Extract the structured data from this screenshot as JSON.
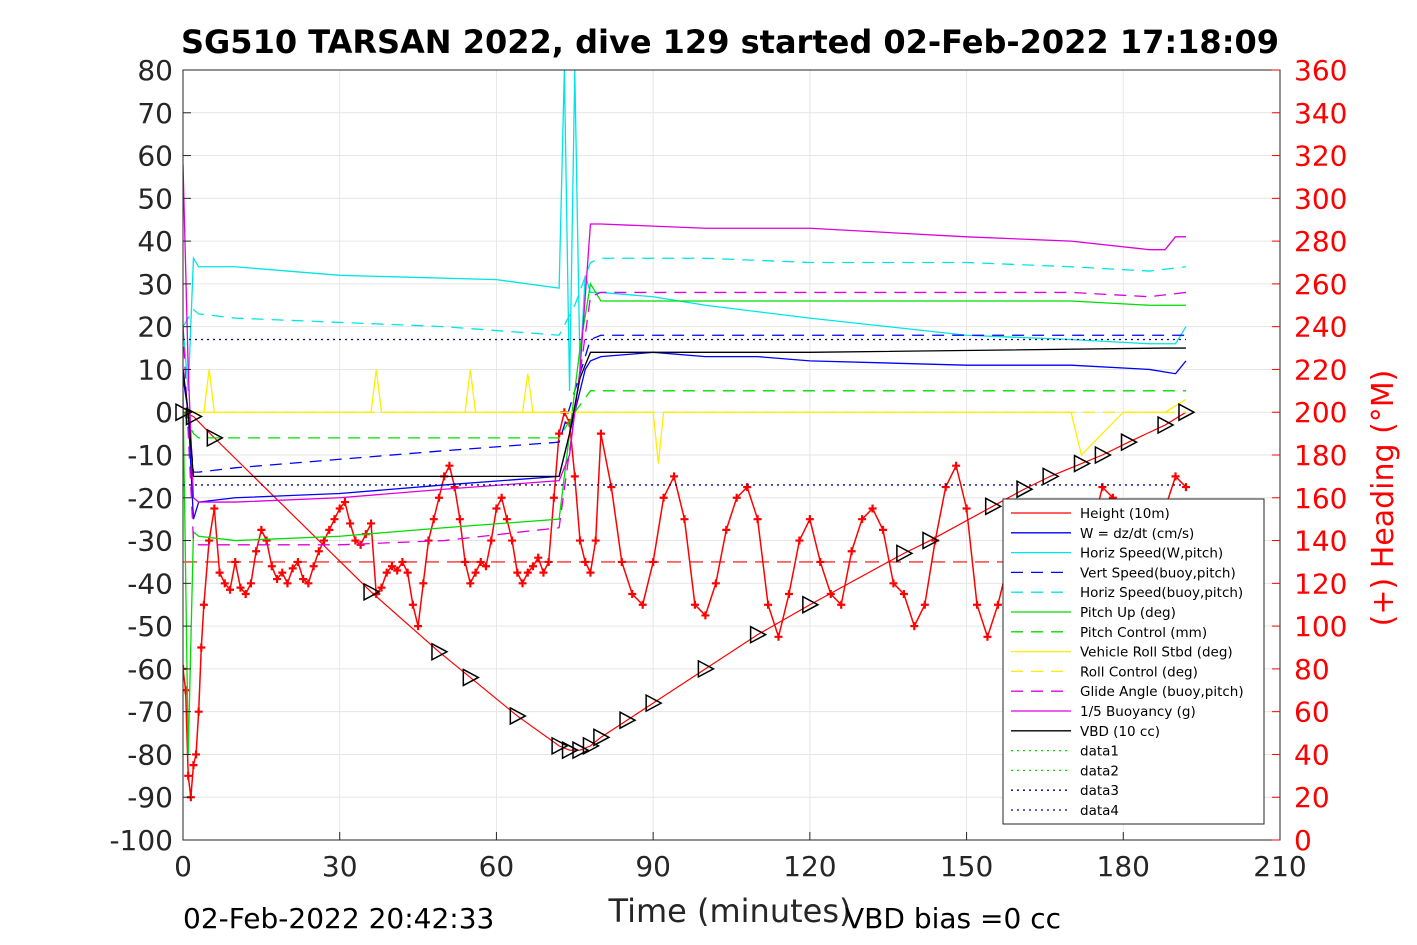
{
  "chart_data": {
    "type": "line",
    "title": "SG510 TARSAN 2022, dive 129 started 02-Feb-2022 17:18:09",
    "xlabel": "Time (minutes)",
    "ylabel": "",
    "y2label": "(+) Heading (°M)",
    "xlim": [
      0,
      210
    ],
    "ylim": [
      -100,
      80
    ],
    "y2lim": [
      0,
      360
    ],
    "xticks": [
      "0",
      "30",
      "60",
      "90",
      "120",
      "150",
      "180",
      "210"
    ],
    "yticks": [
      "80",
      "70",
      "60",
      "50",
      "40",
      "30",
      "20",
      "10",
      "0",
      "-10",
      "-20",
      "-30",
      "-40",
      "-50",
      "-60",
      "-70",
      "-80",
      "-90",
      "-100"
    ],
    "y2ticks": [
      "360",
      "340",
      "320",
      "300",
      "280",
      "260",
      "240",
      "220",
      "200",
      "180",
      "160",
      "140",
      "120",
      "100",
      "80",
      "60",
      "40",
      "20",
      "0"
    ],
    "grid": true,
    "legend_position": "lower-right",
    "colors": {
      "red": "#ff0000",
      "blue": "#0000ff",
      "cyan": "#00e5e5",
      "green": "#00dd00",
      "yellow": "#ffee00",
      "magenta": "#dd00dd",
      "black": "#000000",
      "navy": "#000088"
    },
    "series": [
      {
        "name": "Height (10m)",
        "color": "#ff0000",
        "dash": "solid",
        "x": [
          0,
          2,
          6,
          36,
          49,
          55,
          64,
          72,
          74,
          76,
          78,
          80,
          85,
          90,
          100,
          110,
          120,
          138,
          143,
          155,
          161,
          166,
          172,
          176,
          181,
          188,
          192
        ],
        "y": [
          0,
          -1,
          -6,
          -42,
          -56,
          -62,
          -71,
          -78,
          -79,
          -79,
          -78,
          -76,
          -72,
          -68,
          -60,
          -52,
          -45,
          -33,
          -30,
          -22,
          -18,
          -15,
          -12,
          -10,
          -7,
          -3,
          0
        ]
      },
      {
        "name": "W = dz/dt (cm/s)",
        "color": "#0000ff",
        "dash": "solid",
        "x": [
          0,
          1,
          2,
          3,
          10,
          30,
          50,
          72,
          74,
          76,
          77,
          78,
          80,
          90,
          100,
          110,
          120,
          150,
          170,
          185,
          190,
          192
        ],
        "y": [
          8,
          0,
          -25,
          -21,
          -20,
          -19,
          -17,
          -15,
          -5,
          5,
          10,
          12,
          13,
          14,
          13,
          13,
          12,
          11,
          11,
          10,
          9,
          12
        ]
      },
      {
        "name": "Horiz Speed(W,pitch)",
        "color": "#00e5e5",
        "dash": "solid",
        "x": [
          0,
          1,
          2,
          3,
          10,
          30,
          60,
          72,
          73,
          74,
          75,
          76,
          77,
          78,
          80,
          90,
          100,
          120,
          150,
          170,
          185,
          190,
          192
        ],
        "y": [
          20,
          5,
          36,
          34,
          34,
          32,
          31,
          29,
          80,
          5,
          80,
          10,
          32,
          28,
          28,
          27,
          25,
          22,
          18,
          17,
          16,
          16,
          20
        ]
      },
      {
        "name": "Vert Speed(buoy,pitch)",
        "color": "#0000ff",
        "dash": "dashed",
        "x": [
          0,
          1,
          2,
          3,
          10,
          30,
          50,
          72,
          75,
          78,
          80,
          100,
          120,
          150,
          170,
          185,
          192
        ],
        "y": [
          10,
          0,
          -14,
          -14,
          -13,
          -11,
          -9,
          -7,
          5,
          17,
          18,
          18,
          18,
          18,
          18,
          18,
          18
        ]
      },
      {
        "name": "Horiz Speed(buoy,pitch)",
        "color": "#00e5e5",
        "dash": "dashed",
        "x": [
          0,
          2,
          3,
          10,
          30,
          50,
          72,
          75,
          78,
          80,
          100,
          120,
          150,
          170,
          185,
          192
        ],
        "y": [
          20,
          24,
          23,
          22,
          21,
          20,
          18,
          25,
          35,
          36,
          36,
          35,
          35,
          34,
          33,
          34
        ]
      },
      {
        "name": "Pitch Up (deg)",
        "color": "#00dd00",
        "dash": "solid",
        "x": [
          0,
          1,
          2,
          3,
          10,
          30,
          50,
          72,
          74,
          76,
          78,
          80,
          100,
          120,
          150,
          170,
          185,
          192
        ],
        "y": [
          5,
          -80,
          -28,
          -29,
          -30,
          -29,
          -27,
          -25,
          -5,
          15,
          30,
          26,
          26,
          26,
          26,
          26,
          25,
          25
        ]
      },
      {
        "name": "Pitch Control (mm)",
        "color": "#00dd00",
        "dash": "dashed",
        "x": [
          0,
          2,
          3,
          72,
          75,
          78,
          120,
          180,
          192
        ],
        "y": [
          0,
          -5,
          -6,
          -6,
          0,
          5,
          5,
          5,
          5
        ]
      },
      {
        "name": "Vehicle Roll Stbd (deg)",
        "color": "#ffee00",
        "dash": "solid",
        "x": [
          0,
          2,
          4,
          5,
          6,
          7,
          10,
          30,
          36,
          37,
          38,
          50,
          54,
          55,
          56,
          65,
          66,
          67,
          72,
          75,
          80,
          85,
          90,
          91,
          92,
          100,
          110,
          120,
          140,
          150,
          170,
          172,
          180,
          188,
          192
        ],
        "y": [
          0,
          0,
          0,
          10,
          0,
          0,
          0,
          0,
          0,
          10,
          0,
          0,
          0,
          10,
          0,
          0,
          9,
          0,
          0,
          0,
          0,
          0,
          0,
          -12,
          0,
          0,
          0,
          0,
          0,
          0,
          0,
          -10,
          0,
          0,
          3
        ]
      },
      {
        "name": "Roll Control (deg)",
        "color": "#ffee00",
        "dash": "dashed",
        "x": [
          0,
          72,
          75,
          192
        ],
        "y": [
          0,
          0,
          0,
          0
        ]
      },
      {
        "name": "Glide Angle (buoy,pitch)",
        "color": "#dd00dd",
        "dash": "dashed",
        "x": [
          0,
          2,
          3,
          10,
          30,
          50,
          72,
          75,
          78,
          80,
          100,
          120,
          150,
          170,
          185,
          192
        ],
        "y": [
          20,
          -30,
          -31,
          -31,
          -31,
          -30,
          -27,
          0,
          27,
          28,
          28,
          28,
          28,
          28,
          27,
          28
        ]
      },
      {
        "name": "1/5 Buoyancy (g)",
        "color": "#dd00dd",
        "dash": "solid",
        "x": [
          0,
          1,
          2,
          3,
          10,
          30,
          50,
          72,
          74,
          76,
          78,
          80,
          100,
          120,
          150,
          170,
          185,
          188,
          190,
          192
        ],
        "y": [
          58,
          10,
          -20,
          -21,
          -21,
          -20,
          -18,
          -16,
          -10,
          10,
          44,
          44,
          43,
          43,
          41,
          40,
          38,
          38,
          41,
          41
        ]
      },
      {
        "name": "VBD (10 cc)",
        "color": "#000000",
        "dash": "solid",
        "x": [
          0,
          1,
          2,
          3,
          72,
          73,
          74,
          76,
          77,
          78,
          80,
          120,
          188,
          192
        ],
        "y": [
          10,
          0,
          -15,
          -15,
          -15,
          -10,
          -5,
          8,
          11,
          14,
          14,
          14,
          15,
          15
        ]
      },
      {
        "name": "data1",
        "color": "#00dd00",
        "dash": "dotted",
        "x": [
          0,
          0
        ],
        "y": [
          0,
          0
        ]
      },
      {
        "name": "data2",
        "color": "#00dd00",
        "dash": "dotted",
        "x": [
          0,
          0
        ],
        "y": [
          0,
          0
        ]
      },
      {
        "name": "data3",
        "color": "#000088",
        "dash": "dotted",
        "x": [
          0,
          192
        ],
        "y": [
          17,
          17
        ]
      },
      {
        "name": "data4",
        "color": "#000088",
        "dash": "dotted",
        "x": [
          0,
          192
        ],
        "y": [
          -17,
          -17
        ]
      }
    ],
    "heading": {
      "color": "#ff0000",
      "mean": 130,
      "x": [
        0,
        0.5,
        1,
        1.5,
        2,
        2.5,
        3,
        3.5,
        4,
        5,
        6,
        7,
        8,
        9,
        10,
        11,
        12,
        13,
        14,
        15,
        16,
        17,
        18,
        19,
        20,
        21,
        22,
        23,
        24,
        25,
        26,
        27,
        28,
        29,
        30,
        31,
        32,
        33,
        34,
        35,
        36,
        37,
        38,
        39,
        40,
        41,
        42,
        43,
        44,
        45,
        46,
        47,
        48,
        49,
        50,
        51,
        52,
        53,
        54,
        55,
        56,
        57,
        58,
        59,
        60,
        61,
        62,
        63,
        64,
        65,
        66,
        67,
        68,
        69,
        70,
        71,
        72,
        73,
        74,
        75,
        76,
        77,
        78,
        79,
        80,
        82,
        84,
        86,
        88,
        90,
        92,
        94,
        96,
        98,
        100,
        102,
        104,
        106,
        108,
        110,
        112,
        114,
        116,
        118,
        120,
        122,
        124,
        126,
        128,
        130,
        132,
        134,
        136,
        138,
        140,
        142,
        144,
        146,
        148,
        150,
        152,
        154,
        156,
        158,
        160,
        162,
        164,
        166,
        168,
        170,
        172,
        174,
        176,
        178,
        180,
        182,
        184,
        186,
        188,
        190,
        192
      ],
      "y": [
        80,
        70,
        30,
        20,
        35,
        40,
        60,
        90,
        110,
        140,
        155,
        125,
        120,
        117,
        130,
        118,
        115,
        120,
        135,
        145,
        140,
        128,
        122,
        125,
        120,
        127,
        130,
        122,
        120,
        128,
        135,
        140,
        145,
        150,
        155,
        158,
        148,
        140,
        138,
        143,
        148,
        115,
        118,
        125,
        128,
        126,
        130,
        125,
        110,
        100,
        120,
        140,
        150,
        160,
        170,
        175,
        165,
        150,
        130,
        120,
        125,
        130,
        128,
        140,
        155,
        160,
        150,
        140,
        125,
        120,
        125,
        128,
        132,
        125,
        130,
        160,
        190,
        200,
        195,
        170,
        140,
        130,
        125,
        140,
        190,
        165,
        130,
        115,
        110,
        130,
        160,
        170,
        150,
        110,
        105,
        120,
        145,
        160,
        165,
        150,
        110,
        95,
        115,
        140,
        150,
        130,
        115,
        110,
        135,
        150,
        155,
        145,
        120,
        115,
        100,
        110,
        140,
        165,
        175,
        155,
        110,
        95,
        110,
        130,
        115,
        95,
        120,
        140,
        150,
        130,
        110,
        145,
        165,
        160,
        145,
        120,
        105,
        130,
        155,
        170,
        165
      ]
    }
  },
  "footer": {
    "timestamp": "02-Feb-2022 20:42:33",
    "vbd_bias": "VBD bias =0 cc"
  }
}
